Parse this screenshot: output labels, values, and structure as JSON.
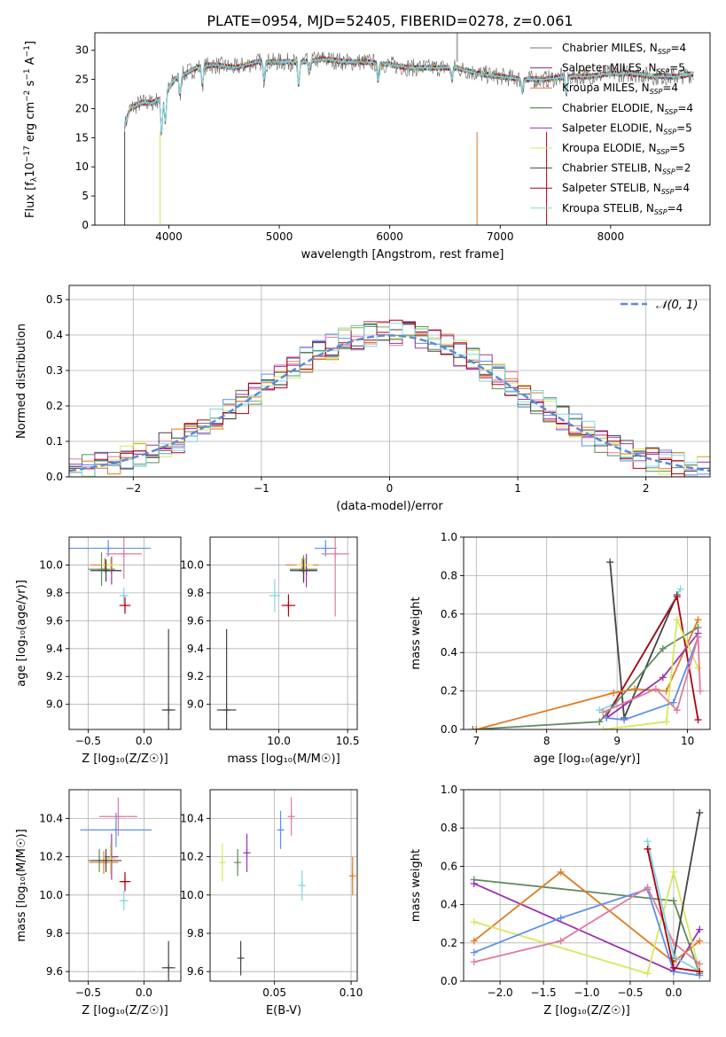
{
  "figure": {
    "title": "PLATE=0954, MJD=52405, FIBERID=0278, z=0.061"
  },
  "palette": {
    "series_colors": [
      "#5b8ff0",
      "#e07b9b",
      "#e07a1f",
      "#5f8a5f",
      "#9b30b0",
      "#d6e85a",
      "#444444",
      "#b00010",
      "#80d8e0"
    ]
  },
  "chart_data": [
    {
      "id": "spectrum",
      "type": "line",
      "title": "PLATE=0954, MJD=52405, FIBERID=0278, z=0.061",
      "xlabel": "wavelength [Angstrom, rest frame]",
      "ylabel": "Flux [f_λ10^-17 erg cm^-2 s^-1 A^-1]",
      "xlim": [
        3330,
        8900
      ],
      "ylim": [
        0,
        33
      ],
      "xticks": [
        4000,
        5000,
        6000,
        7000,
        8000
      ],
      "yticks": [
        0,
        5,
        10,
        15,
        20,
        25,
        30
      ],
      "grid": false,
      "legend_position": "top-right",
      "legend": [
        {
          "label": "Chabrier MILES, N",
          "sub": "SSP",
          "suffix": "=4",
          "color": "#5f8a5f"
        },
        {
          "label": "Salpeter MILES, N",
          "sub": "SSP",
          "suffix": "=5",
          "color": "#8a2b8a"
        },
        {
          "label": "Kroupa MILES, N",
          "sub": "SSP",
          "suffix": "=4",
          "color": "#e07a1f"
        },
        {
          "label": "Chabrier ELODIE, N",
          "sub": "SSP",
          "suffix": "=4",
          "color": "#3d6b3d"
        },
        {
          "label": "Salpeter ELODIE, N",
          "sub": "SSP",
          "suffix": "=5",
          "color": "#9b30b0"
        },
        {
          "label": "Kroupa ELODIE, N",
          "sub": "SSP",
          "suffix": "=5",
          "color": "#d6e85a"
        },
        {
          "label": "Chabrier STELIB, N",
          "sub": "SSP",
          "suffix": "=2",
          "color": "#444444"
        },
        {
          "label": "Salpeter STELIB, N",
          "sub": "SSP",
          "suffix": "=4",
          "color": "#b00010"
        },
        {
          "label": "Kroupa STELIB, N",
          "sub": "SSP",
          "suffix": "=4",
          "color": "#80d8e0"
        }
      ],
      "continuum_points": [
        [
          3600,
          17
        ],
        [
          3650,
          20
        ],
        [
          3750,
          21
        ],
        [
          3850,
          21
        ],
        [
          3950,
          22
        ],
        [
          4050,
          25
        ],
        [
          4150,
          26
        ],
        [
          4250,
          27
        ],
        [
          4400,
          27.5
        ],
        [
          4600,
          27
        ],
        [
          4800,
          28
        ],
        [
          5000,
          28
        ],
        [
          5200,
          28
        ],
        [
          5400,
          28.5
        ],
        [
          5600,
          28
        ],
        [
          5800,
          28
        ],
        [
          6000,
          27.5
        ],
        [
          6200,
          27
        ],
        [
          6400,
          27
        ],
        [
          6600,
          27
        ],
        [
          6800,
          26
        ],
        [
          7000,
          25.5
        ],
        [
          7200,
          25
        ],
        [
          7400,
          25
        ],
        [
          7600,
          25.5
        ],
        [
          7800,
          25.5
        ],
        [
          8000,
          26
        ],
        [
          8200,
          26
        ],
        [
          8400,
          25.5
        ],
        [
          8600,
          25.5
        ],
        [
          8750,
          26
        ]
      ]
    },
    {
      "id": "residuals",
      "type": "step",
      "xlabel": "(data-model)/error",
      "ylabel": "Normed distribution",
      "xlim": [
        -2.5,
        2.5
      ],
      "ylim": [
        0,
        0.54
      ],
      "xticks": [
        -2,
        -1,
        0,
        1,
        2
      ],
      "yticks": [
        0.0,
        0.1,
        0.2,
        0.3,
        0.4,
        0.5
      ],
      "grid": true,
      "legend_position": "top-right",
      "reference_label": "𝒩(0, 1)",
      "bin_width": 0.1
    },
    {
      "id": "age-vs-Z",
      "type": "scatter",
      "xlabel": "Z [log₁₀(Z/Z☉)]",
      "ylabel": "age  [log₁₀(age/yr)]",
      "xlim": [
        -0.67,
        0.33
      ],
      "ylim": [
        8.82,
        10.2
      ],
      "xticks": [
        -0.5,
        0.0
      ],
      "yticks": [
        9.0,
        9.2,
        9.4,
        9.6,
        9.8,
        10.0
      ],
      "grid": true,
      "points": [
        {
          "x": -0.32,
          "y": 10.12,
          "xerr": 0.38,
          "yerr": 0.06,
          "color": "#5b8ff0"
        },
        {
          "x": -0.18,
          "y": 10.08,
          "xerr": 0.16,
          "yerr": 0.18,
          "color": "#e07b9b"
        },
        {
          "x": -0.35,
          "y": 10.0,
          "xerr": 0.13,
          "yerr": 0.05,
          "color": "#e07a1f"
        },
        {
          "x": -0.38,
          "y": 9.97,
          "xerr": 0.12,
          "yerr": 0.12,
          "color": "#5f8a5f"
        },
        {
          "x": -0.29,
          "y": 9.96,
          "xerr": 0.08,
          "yerr": 0.1,
          "color": "#9b30b0"
        },
        {
          "x": -0.3,
          "y": 10.0,
          "xerr": 0.08,
          "yerr": 0.05,
          "color": "#d6e85a"
        },
        {
          "x": -0.34,
          "y": 9.96,
          "xerr": 0.14,
          "yerr": 0.08,
          "color": "#444444"
        },
        {
          "x": -0.17,
          "y": 9.71,
          "xerr": 0.05,
          "yerr": 0.06,
          "color": "#b00010"
        },
        {
          "x": -0.18,
          "y": 9.78,
          "xerr": 0.04,
          "yerr": 0.06,
          "color": "#80d8e0"
        },
        {
          "x": 0.22,
          "y": 8.96,
          "xerr": 0.06,
          "yerr": 0.58,
          "color": "#444444"
        }
      ]
    },
    {
      "id": "age-vs-mass",
      "type": "scatter",
      "xlabel": "mass [log₁₀(M/M☉)]",
      "ylabel": "",
      "xlim": [
        9.5,
        10.57
      ],
      "ylim": [
        8.82,
        10.2
      ],
      "xticks": [
        10.0,
        10.5
      ],
      "yticks": [
        9.0,
        9.2,
        9.4,
        9.6,
        9.8,
        10.0
      ],
      "grid": true,
      "points": [
        {
          "x": 10.34,
          "y": 10.12,
          "xerr": 0.08,
          "yerr": 0.06,
          "color": "#5b8ff0"
        },
        {
          "x": 10.41,
          "y": 10.08,
          "xerr": 0.1,
          "yerr": 0.45,
          "color": "#e07b9b"
        },
        {
          "x": 10.17,
          "y": 10.0,
          "xerr": 0.12,
          "yerr": 0.05,
          "color": "#e07a1f"
        },
        {
          "x": 10.18,
          "y": 9.97,
          "xerr": 0.1,
          "yerr": 0.1,
          "color": "#5f8a5f"
        },
        {
          "x": 10.2,
          "y": 9.96,
          "xerr": 0.06,
          "yerr": 0.12,
          "color": "#9b30b0"
        },
        {
          "x": 10.19,
          "y": 10.0,
          "xerr": 0.06,
          "yerr": 0.05,
          "color": "#d6e85a"
        },
        {
          "x": 10.18,
          "y": 9.96,
          "xerr": 0.1,
          "yerr": 0.08,
          "color": "#444444"
        },
        {
          "x": 10.07,
          "y": 9.71,
          "xerr": 0.05,
          "yerr": 0.08,
          "color": "#b00010"
        },
        {
          "x": 9.97,
          "y": 9.78,
          "xerr": 0.04,
          "yerr": 0.12,
          "color": "#80d8e0"
        },
        {
          "x": 9.62,
          "y": 8.96,
          "xerr": 0.07,
          "yerr": 0.58,
          "color": "#444444"
        }
      ]
    },
    {
      "id": "massweight-vs-age",
      "type": "line",
      "xlabel": "age  [log₁₀(age/yr)]",
      "ylabel": "mass weight",
      "xlim": [
        6.82,
        10.32
      ],
      "ylim": [
        0,
        1.0
      ],
      "xticks": [
        7,
        8,
        9,
        10
      ],
      "yticks": [
        0.0,
        0.2,
        0.4,
        0.6,
        0.8,
        1.0
      ],
      "grid": true,
      "series": [
        {
          "color": "#444444",
          "points": [
            [
              8.9,
              0.87
            ],
            [
              9.1,
              0.06
            ],
            [
              9.85,
              0.7
            ]
          ]
        },
        {
          "color": "#80d8e0",
          "points": [
            [
              8.75,
              0.1
            ],
            [
              8.95,
              0.13
            ],
            [
              9.9,
              0.73
            ]
          ]
        },
        {
          "color": "#b00010",
          "points": [
            [
              8.85,
              0.07
            ],
            [
              9.85,
              0.69
            ],
            [
              10.15,
              0.05
            ]
          ]
        },
        {
          "color": "#5f8a5f",
          "points": [
            [
              6.95,
              0.0
            ],
            [
              8.75,
              0.04
            ],
            [
              9.65,
              0.42
            ],
            [
              10.15,
              0.53
            ]
          ]
        },
        {
          "color": "#e07a1f",
          "points": [
            [
              7.0,
              0.0
            ],
            [
              8.95,
              0.19
            ],
            [
              9.25,
              0.21
            ],
            [
              9.7,
              0.2
            ],
            [
              10.15,
              0.57
            ]
          ]
        },
        {
          "color": "#9b30b0",
          "points": [
            [
              8.85,
              0.06
            ],
            [
              9.65,
              0.27
            ],
            [
              10.15,
              0.5
            ]
          ]
        },
        {
          "color": "#d6e85a",
          "points": [
            [
              8.8,
              0.0
            ],
            [
              9.7,
              0.04
            ],
            [
              9.85,
              0.57
            ],
            [
              10.15,
              0.32
            ]
          ]
        },
        {
          "color": "#5b8ff0",
          "points": [
            [
              8.85,
              0.06
            ],
            [
              9.1,
              0.05
            ],
            [
              9.8,
              0.14
            ],
            [
              10.15,
              0.48
            ]
          ]
        },
        {
          "color": "#e07b9b",
          "points": [
            [
              8.8,
              0.09
            ],
            [
              9.55,
              0.21
            ],
            [
              9.85,
              0.1
            ],
            [
              10.15,
              0.48
            ],
            [
              10.18,
              0.2
            ]
          ]
        }
      ]
    },
    {
      "id": "mass-vs-Z",
      "type": "scatter",
      "xlabel": "Z [log₁₀(Z/Z☉)]",
      "ylabel": "mass [log₁₀(M/M☉)]",
      "xlim": [
        -0.67,
        0.33
      ],
      "ylim": [
        9.55,
        10.55
      ],
      "xticks": [
        -0.5,
        0.0
      ],
      "yticks": [
        9.6,
        9.8,
        10.0,
        10.2,
        10.4
      ],
      "grid": true,
      "points": [
        {
          "x": -0.25,
          "y": 10.34,
          "xerr": 0.32,
          "yerr": 0.09,
          "color": "#5b8ff0"
        },
        {
          "x": -0.23,
          "y": 10.41,
          "xerr": 0.17,
          "yerr": 0.1,
          "color": "#e07b9b"
        },
        {
          "x": -0.36,
          "y": 10.17,
          "xerr": 0.13,
          "yerr": 0.06,
          "color": "#e07a1f"
        },
        {
          "x": -0.4,
          "y": 10.18,
          "xerr": 0.1,
          "yerr": 0.06,
          "color": "#5f8a5f"
        },
        {
          "x": -0.29,
          "y": 10.2,
          "xerr": 0.06,
          "yerr": 0.12,
          "color": "#9b30b0"
        },
        {
          "x": -0.3,
          "y": 10.19,
          "xerr": 0.06,
          "yerr": 0.08,
          "color": "#d6e85a"
        },
        {
          "x": -0.34,
          "y": 10.18,
          "xerr": 0.14,
          "yerr": 0.06,
          "color": "#444444"
        },
        {
          "x": -0.17,
          "y": 10.07,
          "xerr": 0.05,
          "yerr": 0.05,
          "color": "#b00010"
        },
        {
          "x": -0.18,
          "y": 9.97,
          "xerr": 0.04,
          "yerr": 0.05,
          "color": "#80d8e0"
        },
        {
          "x": 0.22,
          "y": 9.62,
          "xerr": 0.06,
          "yerr": 0.14,
          "color": "#444444"
        }
      ]
    },
    {
      "id": "mass-vs-ebv",
      "type": "scatter",
      "xlabel": "E(B-V)",
      "ylabel": "",
      "xlim": [
        0.008,
        0.104
      ],
      "ylim": [
        9.55,
        10.55
      ],
      "xticks": [
        0.05,
        0.1
      ],
      "yticks": [
        9.6,
        9.8,
        10.0,
        10.2,
        10.4
      ],
      "grid": true,
      "points": [
        {
          "x": 0.054,
          "y": 10.34,
          "xerr": 0.0,
          "yerr": 0.1,
          "color": "#5b8ff0"
        },
        {
          "x": 0.061,
          "y": 10.41,
          "xerr": 0.0,
          "yerr": 0.1,
          "color": "#e07b9b"
        },
        {
          "x": 0.101,
          "y": 10.1,
          "xerr": 0.0,
          "yerr": 0.1,
          "color": "#e07a1f"
        },
        {
          "x": 0.026,
          "y": 10.17,
          "xerr": 0.0,
          "yerr": 0.07,
          "color": "#5f8a5f"
        },
        {
          "x": 0.032,
          "y": 10.22,
          "xerr": 0.0,
          "yerr": 0.1,
          "color": "#9b30b0"
        },
        {
          "x": 0.016,
          "y": 10.17,
          "xerr": 0.0,
          "yerr": 0.1,
          "color": "#d6e85a"
        },
        {
          "x": 0.028,
          "y": 9.67,
          "xerr": 0.0,
          "yerr": 0.09,
          "color": "#444444"
        },
        {
          "x": 0.068,
          "y": 10.05,
          "xerr": 0.0,
          "yerr": 0.08,
          "color": "#80d8e0"
        }
      ]
    },
    {
      "id": "massweight-vs-Z",
      "type": "line",
      "xlabel": "Z [log₁₀(Z/Z☉)]",
      "ylabel": "mass weight",
      "xlim": [
        -2.42,
        0.42
      ],
      "ylim": [
        0,
        1.0
      ],
      "xticks": [
        -2.0,
        -1.5,
        -1.0,
        -0.5,
        0.0
      ],
      "yticks": [
        0.0,
        0.2,
        0.4,
        0.6,
        0.8,
        1.0
      ],
      "grid": true,
      "series": [
        {
          "color": "#5f8a5f",
          "points": [
            [
              -2.3,
              0.53
            ],
            [
              0.0,
              0.42
            ],
            [
              0.3,
              0.04
            ]
          ]
        },
        {
          "color": "#9b30b0",
          "points": [
            [
              -2.3,
              0.51
            ],
            [
              0.0,
              0.05
            ],
            [
              0.3,
              0.27
            ]
          ]
        },
        {
          "color": "#e07a1f",
          "points": [
            [
              -2.3,
              0.21
            ],
            [
              -1.3,
              0.57
            ],
            [
              0.0,
              0.1
            ],
            [
              0.3,
              0.21
            ]
          ]
        },
        {
          "color": "#d6e85a",
          "points": [
            [
              -2.3,
              0.31
            ],
            [
              -0.3,
              0.04
            ],
            [
              0.0,
              0.57
            ],
            [
              0.3,
              0.05
            ]
          ]
        },
        {
          "color": "#5b8ff0",
          "points": [
            [
              -2.3,
              0.15
            ],
            [
              -1.3,
              0.33
            ],
            [
              -0.3,
              0.48
            ],
            [
              0.0,
              0.05
            ],
            [
              0.3,
              0.03
            ]
          ]
        },
        {
          "color": "#e07b9b",
          "points": [
            [
              -2.3,
              0.1
            ],
            [
              -1.3,
              0.21
            ],
            [
              -0.3,
              0.49
            ],
            [
              0.0,
              0.2
            ],
            [
              0.3,
              0.09
            ]
          ]
        },
        {
          "color": "#444444",
          "points": [
            [
              0.0,
              0.12
            ],
            [
              0.3,
              0.88
            ]
          ]
        },
        {
          "color": "#80d8e0",
          "points": [
            [
              -0.3,
              0.73
            ],
            [
              0.0,
              0.13
            ],
            [
              0.3,
              0.05
            ]
          ]
        },
        {
          "color": "#b00010",
          "points": [
            [
              -0.3,
              0.69
            ],
            [
              0.0,
              0.07
            ],
            [
              0.3,
              0.05
            ]
          ]
        }
      ]
    }
  ]
}
